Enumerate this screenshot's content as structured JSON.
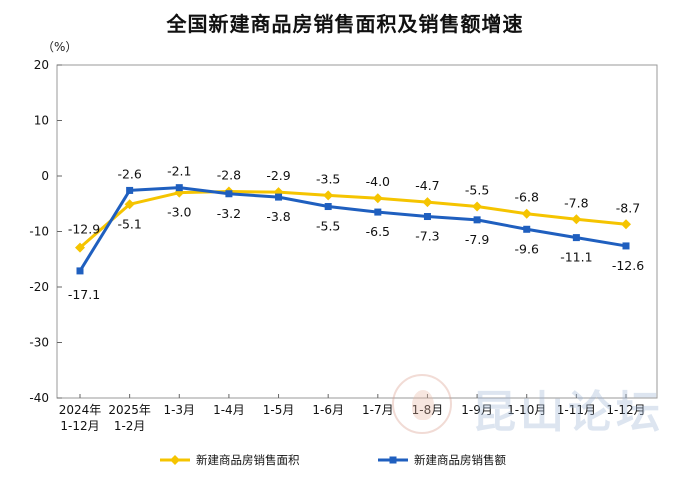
{
  "chart_data": {
    "type": "line",
    "title": "全国新建商品房销售面积及销售额增速",
    "ylabel": "（%）",
    "ylim": [
      -40,
      20
    ],
    "yticks": [
      "20",
      "10",
      "0",
      "-10",
      "-20",
      "-30",
      "-40"
    ],
    "grid": false,
    "legend_position": "bottom",
    "categories": [
      [
        "2024年",
        "1-12月"
      ],
      [
        "2025年",
        "1-2月"
      ],
      [
        "1-3月"
      ],
      [
        "1-4月"
      ],
      [
        "1-5月"
      ],
      [
        "1-6月"
      ],
      [
        "1-7月"
      ],
      [
        "1-8月"
      ],
      [
        "1-9月"
      ],
      [
        "1-10月"
      ],
      [
        "1-11月"
      ],
      [
        "1-12月"
      ]
    ],
    "series": [
      {
        "name": "新建商品房销售面积",
        "color": "#f5c400",
        "marker": "diamond",
        "values": [
          -12.9,
          -5.1,
          -3.0,
          -2.8,
          -2.9,
          -3.5,
          -4.0,
          -4.7,
          -5.5,
          -6.8,
          -7.8,
          -8.7
        ],
        "labels": [
          "-12.9",
          "-5.1",
          "-3.0",
          "-2.8",
          "-2.9",
          "-3.5",
          "-4.0",
          "-4.7",
          "-5.5",
          "-6.8",
          "-7.8",
          "-8.7"
        ]
      },
      {
        "name": "新建商品房销售额",
        "color": "#1f5fbf",
        "marker": "square",
        "values": [
          -17.1,
          -2.6,
          -2.1,
          -3.2,
          -3.8,
          -5.5,
          -6.5,
          -7.3,
          -7.9,
          -9.6,
          -11.1,
          -12.6
        ],
        "labels": [
          "-17.1",
          "-2.6",
          "-2.1",
          "-3.2",
          "-3.8",
          "-5.5",
          "-6.5",
          "-7.3",
          "-7.9",
          "-9.6",
          "-11.1",
          "-12.6"
        ]
      }
    ]
  },
  "watermark": {
    "text": "昆山论坛"
  }
}
